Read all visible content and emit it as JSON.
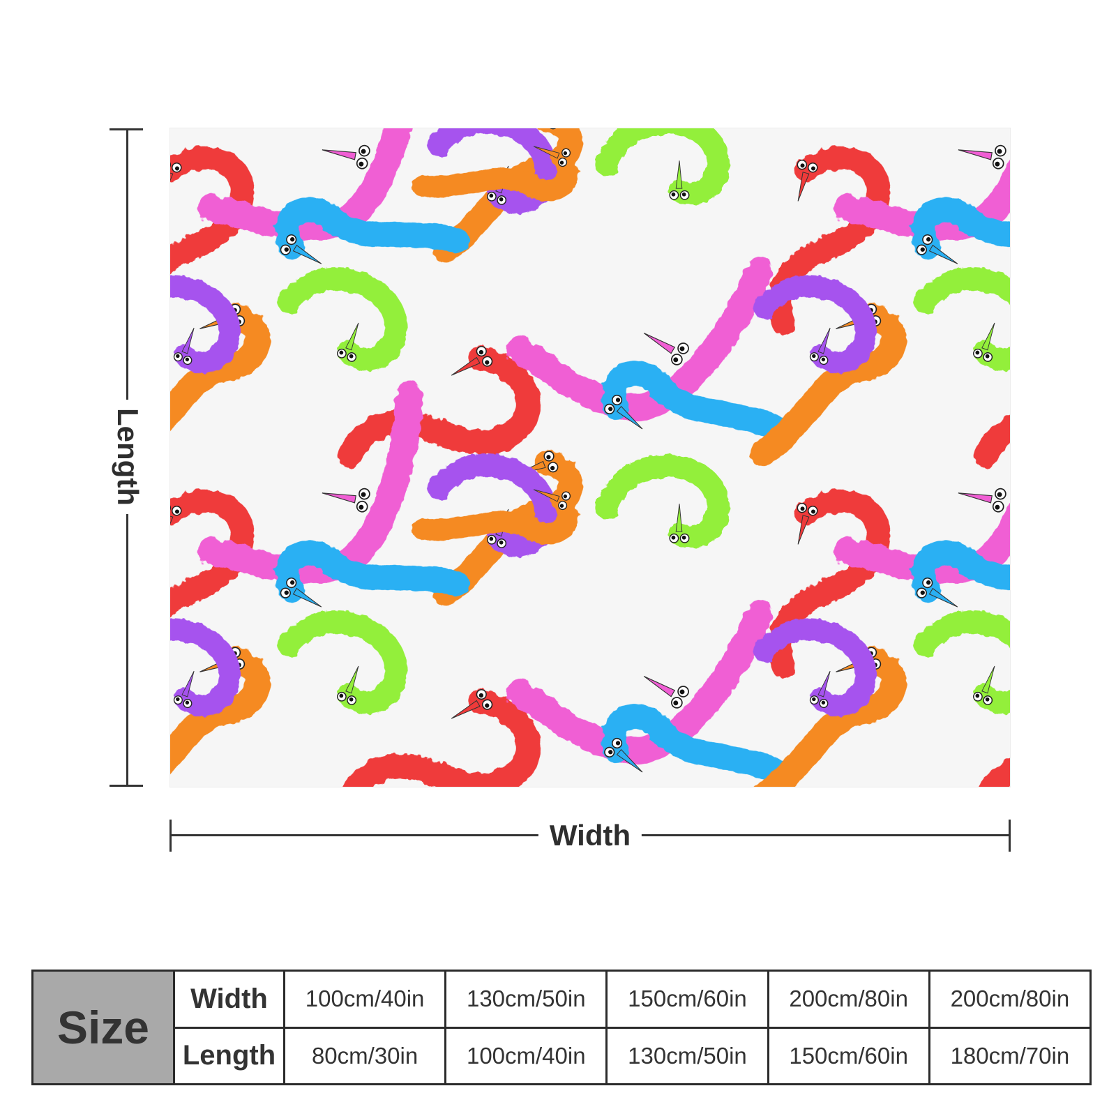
{
  "dimensions": {
    "length_label": "Length",
    "width_label": "Width"
  },
  "pattern": {
    "icon": "fuzzy-worm-pattern",
    "colors": [
      "#ef3a3a",
      "#f05ed4",
      "#2ab0f3",
      "#f58a22",
      "#93ef3a",
      "#a653ee"
    ],
    "background": "#f6f6f6"
  },
  "size_table": {
    "title": "Size",
    "width_label": "Width",
    "length_label": "Length",
    "widths": [
      "100cm/40in",
      "130cm/50in",
      "150cm/60in",
      "200cm/80in",
      "200cm/80in"
    ],
    "lengths": [
      "80cm/30in",
      "100cm/40in",
      "130cm/50in",
      "150cm/60in",
      "180cm/70in"
    ]
  }
}
